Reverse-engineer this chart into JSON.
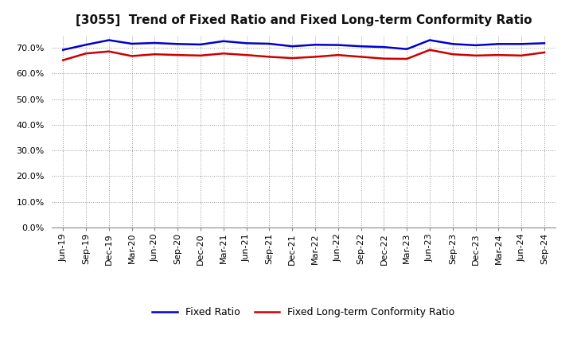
{
  "title": "[3055]  Trend of Fixed Ratio and Fixed Long-term Conformity Ratio",
  "x_labels": [
    "Jun-19",
    "Sep-19",
    "Dec-19",
    "Mar-20",
    "Jun-20",
    "Sep-20",
    "Dec-20",
    "Mar-21",
    "Jun-21",
    "Sep-21",
    "Dec-21",
    "Mar-22",
    "Jun-22",
    "Sep-22",
    "Dec-22",
    "Mar-23",
    "Jun-23",
    "Sep-23",
    "Dec-23",
    "Mar-24",
    "Jun-24",
    "Sep-24"
  ],
  "fixed_ratio": [
    69.2,
    71.2,
    73.0,
    71.6,
    71.9,
    71.5,
    71.3,
    72.6,
    71.8,
    71.6,
    70.6,
    71.2,
    71.1,
    70.6,
    70.3,
    69.5,
    73.0,
    71.5,
    71.0,
    71.5,
    71.5,
    71.8
  ],
  "fixed_lt_conformity": [
    65.2,
    67.8,
    68.6,
    66.8,
    67.5,
    67.2,
    67.0,
    67.8,
    67.2,
    66.5,
    66.0,
    66.5,
    67.2,
    66.5,
    65.8,
    65.7,
    69.2,
    67.5,
    67.0,
    67.2,
    67.0,
    68.2
  ],
  "fixed_ratio_color": "#0000cc",
  "fixed_lt_color": "#cc0000",
  "ylim": [
    0,
    75
  ],
  "yticks": [
    0,
    10,
    20,
    30,
    40,
    50,
    60,
    70
  ],
  "legend_fixed_ratio": "Fixed Ratio",
  "legend_fixed_lt": "Fixed Long-term Conformity Ratio",
  "bg_color": "#ffffff",
  "grid_color": "#999999",
  "line_width": 1.8,
  "title_fontsize": 11,
  "tick_fontsize": 8,
  "legend_fontsize": 9
}
